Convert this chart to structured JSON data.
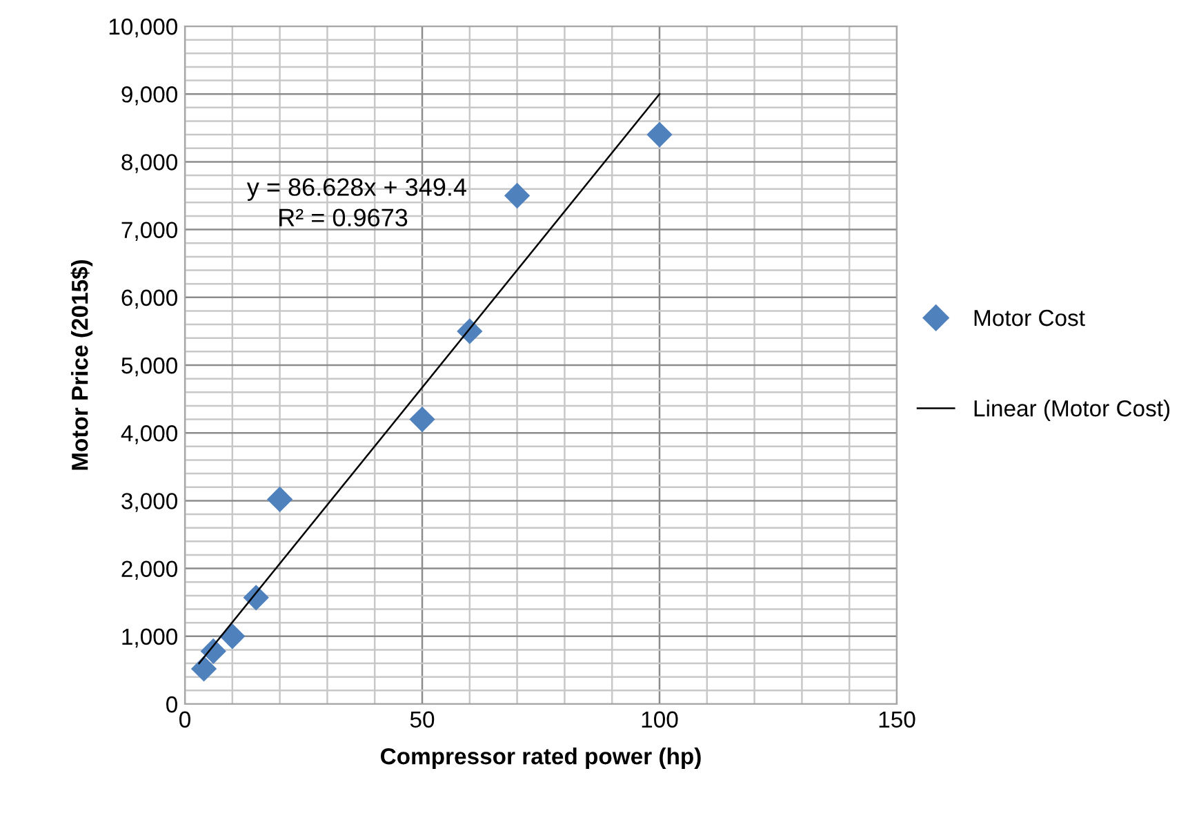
{
  "chart_data": {
    "type": "scatter",
    "xlabel": "Compressor rated power (hp)",
    "ylabel": "Motor Price (2015$)",
    "series": [
      {
        "name": "Motor Cost",
        "type": "scatter",
        "color": "#4f81bd",
        "marker": "diamond",
        "x": [
          4,
          6,
          10,
          15,
          20,
          50,
          60,
          70,
          100
        ],
        "values": [
          520,
          780,
          1000,
          1570,
          3020,
          4200,
          5500,
          7500,
          8400
        ]
      },
      {
        "name": "Linear (Motor Cost)",
        "type": "line",
        "color": "#000000",
        "marker": "none",
        "line_style": "solid",
        "x": [
          3,
          100
        ],
        "values": [
          600,
          9000
        ]
      }
    ],
    "annotations": [
      "y = 86.628x + 349.4",
      "R² = 0.9673"
    ],
    "xlim": [
      0,
      150
    ],
    "ylim": [
      0,
      10000
    ],
    "xticks": [
      0,
      {
        "value": 10,
        "label": null
      },
      {
        "value": 20,
        "label": null
      },
      {
        "value": 30,
        "label": null
      },
      {
        "value": 40,
        "label": null
      },
      50,
      {
        "value": 60,
        "label": null
      },
      {
        "value": 70,
        "label": null
      },
      {
        "value": 80,
        "label": null
      },
      {
        "value": 90,
        "label": null
      },
      100,
      {
        "value": 110,
        "label": null
      },
      {
        "value": 120,
        "label": null
      },
      {
        "value": 130,
        "label": null
      },
      {
        "value": 140,
        "label": null
      },
      150
    ],
    "yticks": [
      {
        "value": 0,
        "label": "0"
      },
      {
        "value": 200,
        "label": null
      },
      {
        "value": 400,
        "label": null
      },
      {
        "value": 600,
        "label": null
      },
      {
        "value": 800,
        "label": null
      },
      {
        "value": 1000,
        "label": "1,000"
      },
      {
        "value": 1200,
        "label": null
      },
      {
        "value": 1400,
        "label": null
      },
      {
        "value": 1600,
        "label": null
      },
      {
        "value": 1800,
        "label": null
      },
      {
        "value": 2000,
        "label": "2,000"
      },
      {
        "value": 2200,
        "label": null
      },
      {
        "value": 2400,
        "label": null
      },
      {
        "value": 2600,
        "label": null
      },
      {
        "value": 2800,
        "label": null
      },
      {
        "value": 3000,
        "label": "3,000"
      },
      {
        "value": 3200,
        "label": null
      },
      {
        "value": 3400,
        "label": null
      },
      {
        "value": 3600,
        "label": null
      },
      {
        "value": 3800,
        "label": null
      },
      {
        "value": 4000,
        "label": "4,000"
      },
      {
        "value": 4200,
        "label": null
      },
      {
        "value": 4400,
        "label": null
      },
      {
        "value": 4600,
        "label": null
      },
      {
        "value": 4800,
        "label": null
      },
      {
        "value": 5000,
        "label": "5,000"
      },
      {
        "value": 5200,
        "label": null
      },
      {
        "value": 5400,
        "label": null
      },
      {
        "value": 5600,
        "label": null
      },
      {
        "value": 5800,
        "label": null
      },
      {
        "value": 6000,
        "label": "6,000"
      },
      {
        "value": 6200,
        "label": null
      },
      {
        "value": 6400,
        "label": null
      },
      {
        "value": 6600,
        "label": null
      },
      {
        "value": 6800,
        "label": null
      },
      {
        "value": 7000,
        "label": "7,000"
      },
      {
        "value": 7200,
        "label": null
      },
      {
        "value": 7400,
        "label": null
      },
      {
        "value": 7600,
        "label": null
      },
      {
        "value": 7800,
        "label": null
      },
      {
        "value": 8000,
        "label": "8,000"
      },
      {
        "value": 8200,
        "label": null
      },
      {
        "value": 8400,
        "label": null
      },
      {
        "value": 8600,
        "label": null
      },
      {
        "value": 8800,
        "label": null
      },
      {
        "value": 9000,
        "label": "9,000"
      },
      {
        "value": 9200,
        "label": null
      },
      {
        "value": 9400,
        "label": null
      },
      {
        "value": 9600,
        "label": null
      },
      {
        "value": 9800,
        "label": null
      },
      {
        "value": 10000,
        "label": "10,000"
      }
    ],
    "grid": true,
    "legend": "right"
  }
}
